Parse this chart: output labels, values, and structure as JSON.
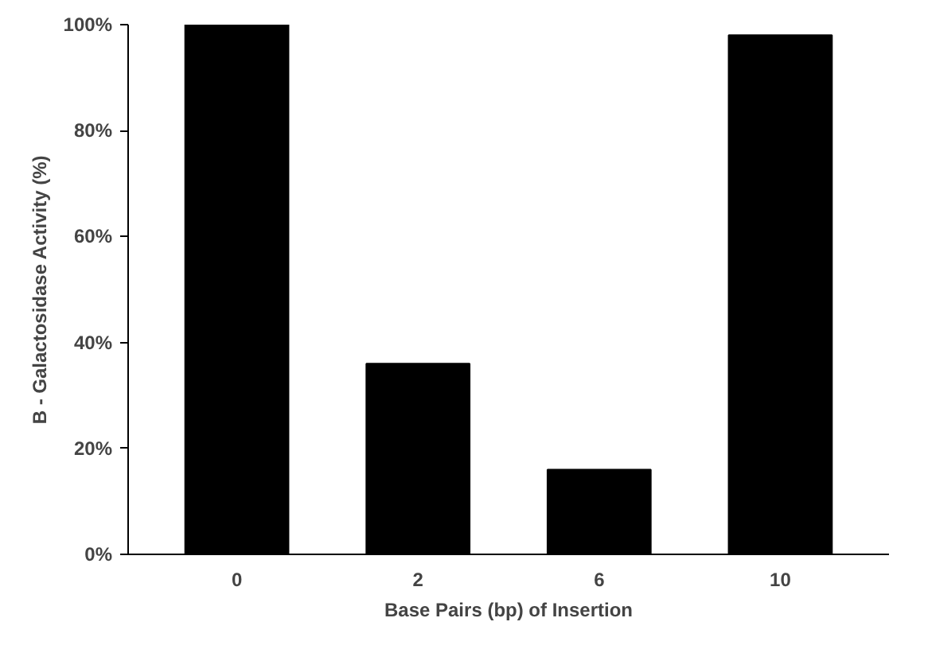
{
  "chart_data": {
    "type": "bar",
    "xlabel": "Base Pairs (bp) of Insertion",
    "ylabel": "B - Galactosidase Activity (%)",
    "categories": [
      "0",
      "2",
      "6",
      "10"
    ],
    "values": [
      100,
      36,
      16,
      98
    ],
    "color": "#000000",
    "ylim": [
      0,
      100
    ],
    "yticks": [
      {
        "value": 0,
        "label": "0%"
      },
      {
        "value": 20,
        "label": "20%"
      },
      {
        "value": 40,
        "label": "40%"
      },
      {
        "value": 60,
        "label": "60%"
      },
      {
        "value": 80,
        "label": "80%"
      },
      {
        "value": 100,
        "label": "100%"
      }
    ],
    "grid": false
  }
}
